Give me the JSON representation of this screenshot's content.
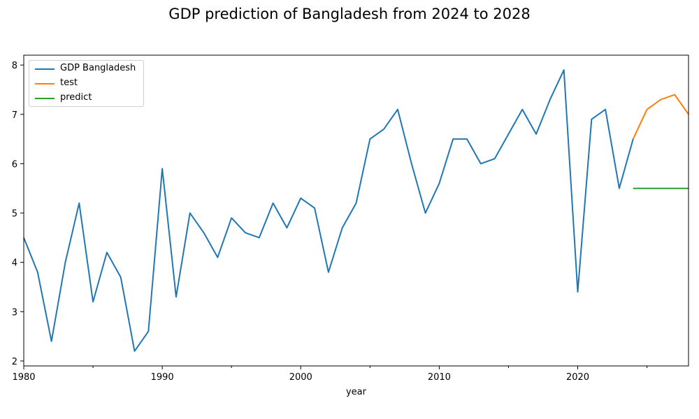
{
  "figure": {
    "suptitle": "GDP prediction of Bangladesh from 2024 to 2028"
  },
  "chart_data": {
    "type": "line",
    "title": "",
    "xlabel": "year",
    "ylabel": "",
    "xlim": [
      1980,
      2028
    ],
    "ylim": [
      1.9,
      8.2
    ],
    "x_ticks": [
      1980,
      1990,
      2000,
      2010,
      2020
    ],
    "x_minor_ticks": [
      1985,
      1995,
      2005,
      2015,
      2025
    ],
    "y_ticks": [
      2,
      3,
      4,
      5,
      6,
      7,
      8
    ],
    "grid": false,
    "legend_position": "top-left",
    "series": [
      {
        "name": "GDP Bangladesh",
        "color": "#1f77b4",
        "x": [
          1980,
          1981,
          1982,
          1983,
          1984,
          1985,
          1986,
          1987,
          1988,
          1989,
          1990,
          1991,
          1992,
          1993,
          1994,
          1995,
          1996,
          1997,
          1998,
          1999,
          2000,
          2001,
          2002,
          2003,
          2004,
          2005,
          2006,
          2007,
          2008,
          2009,
          2010,
          2011,
          2012,
          2013,
          2014,
          2015,
          2016,
          2017,
          2018,
          2019,
          2020,
          2021,
          2022,
          2023,
          2024
        ],
        "values": [
          4.5,
          3.8,
          2.4,
          4.0,
          5.2,
          3.2,
          4.2,
          3.7,
          2.2,
          2.6,
          5.9,
          3.3,
          5.0,
          4.6,
          4.1,
          4.9,
          4.6,
          4.5,
          5.2,
          4.7,
          5.3,
          5.1,
          3.8,
          4.7,
          5.2,
          6.5,
          6.7,
          7.1,
          6.0,
          5.0,
          5.6,
          6.5,
          6.5,
          6.0,
          6.1,
          6.6,
          7.1,
          6.6,
          7.3,
          7.9,
          3.4,
          6.9,
          7.1,
          5.5,
          6.5
        ]
      },
      {
        "name": "test",
        "color": "#ff7f0e",
        "x": [
          2024,
          2025,
          2026,
          2027,
          2028
        ],
        "values": [
          6.5,
          7.1,
          7.3,
          7.4,
          7.0
        ]
      },
      {
        "name": "predict",
        "color": "#2ca02c",
        "x": [
          2024,
          2025,
          2026,
          2027,
          2028
        ],
        "values": [
          5.5,
          5.5,
          5.5,
          5.5,
          5.5
        ]
      }
    ]
  }
}
